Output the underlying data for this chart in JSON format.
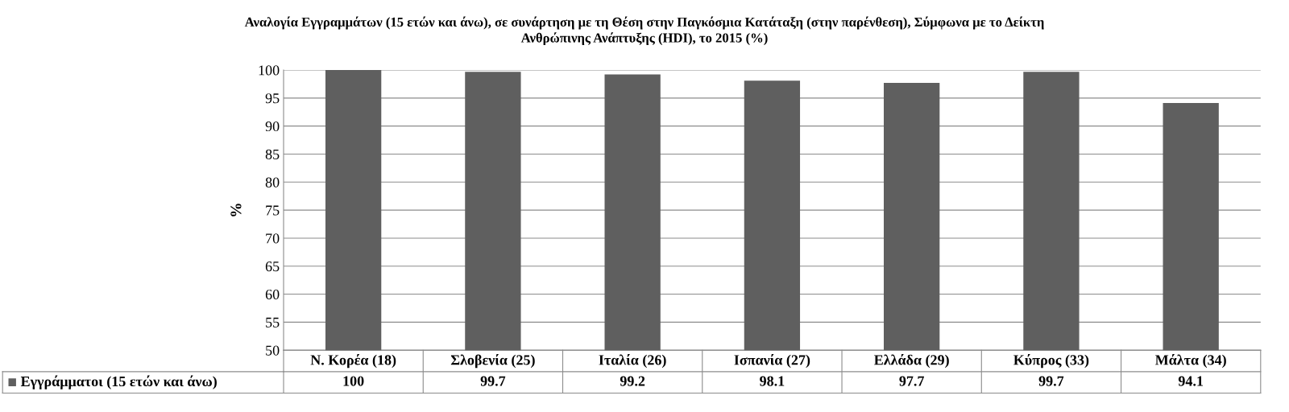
{
  "chart_data": {
    "type": "bar",
    "title": "Αναλογία Εγγραμμάτων (15 ετών και άνω), σε συνάρτηση με τη Θέση στην Παγκόσμια Κατάταξη (στην παρένθεση), Σύμφωνα με το Δείκτη\nΑνθρώπινης Ανάπτυξης (HDI), το 2015 (%)",
    "ylabel": "%",
    "categories": [
      "Ν. Κορέα (18)",
      "Σλοβενία (25)",
      "Ιταλία (26)",
      "Ισπανία (27)",
      "Ελλάδα (29)",
      "Κύπρος (33)",
      "Μάλτα (34)"
    ],
    "series": [
      {
        "name": "Εγγράμματοι (15 ετών και άνω)",
        "color": "#5f5f5f",
        "values": [
          100,
          99.7,
          99.2,
          98.1,
          97.7,
          99.7,
          94.1
        ]
      }
    ],
    "ylim": [
      50,
      100
    ],
    "yticks": [
      50,
      55,
      60,
      65,
      70,
      75,
      80,
      85,
      90,
      95,
      100
    ],
    "grid": "y",
    "legend": "bottom",
    "data_labels": true
  }
}
